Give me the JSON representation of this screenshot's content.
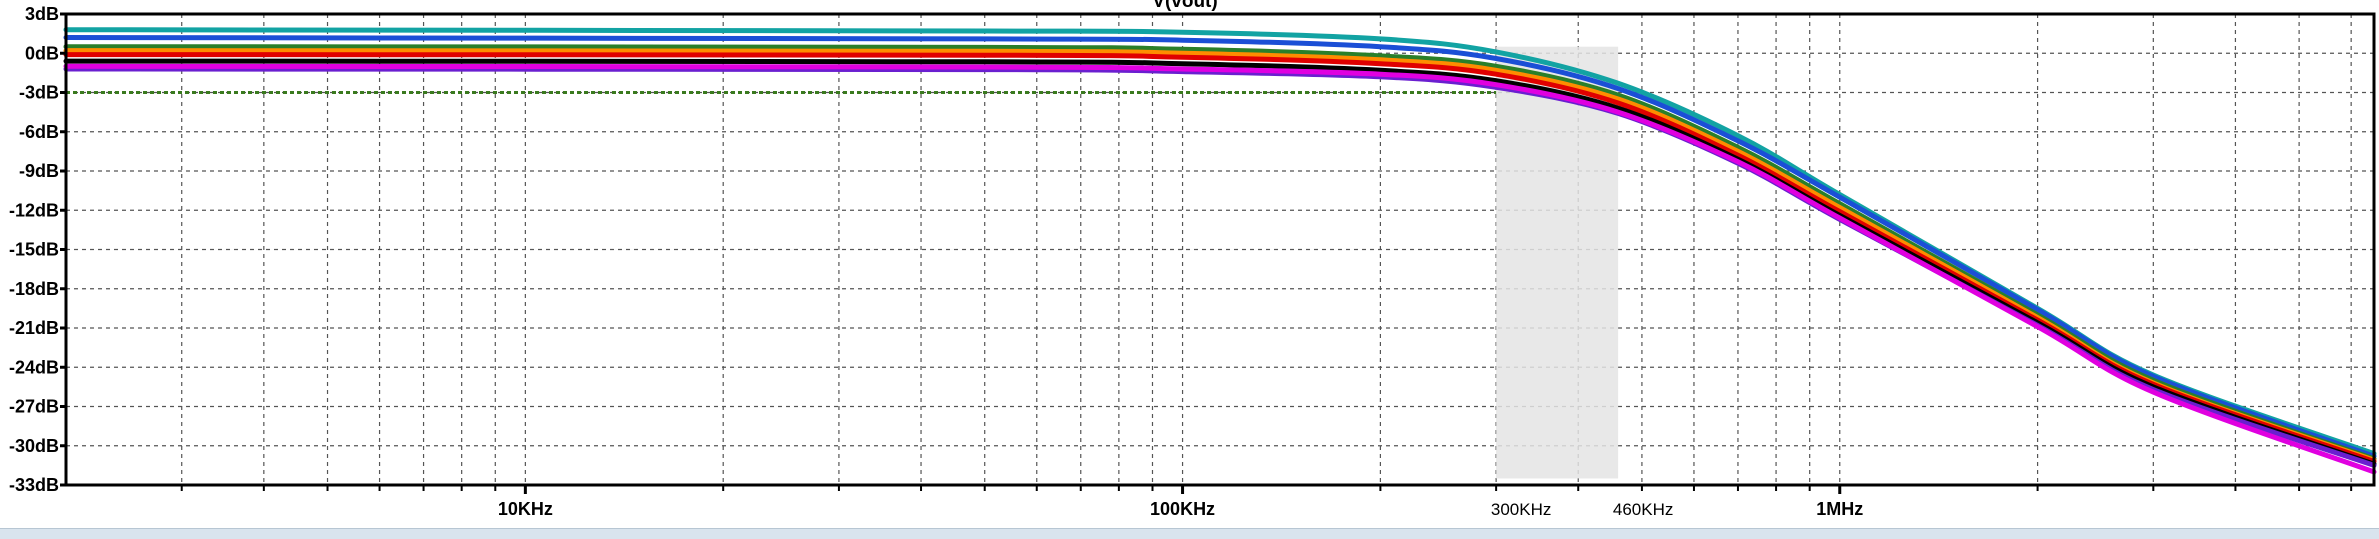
{
  "window": {
    "title": "V(vout)"
  },
  "chart_data": {
    "type": "line",
    "title": "V(vout)",
    "xlabel": "",
    "ylabel": "",
    "xscale": "log",
    "xlim": [
      2000,
      6500000
    ],
    "ylim": [
      -33,
      3
    ],
    "grid": true,
    "y_ticks": [
      {
        "value": 3,
        "label": "3dB"
      },
      {
        "value": 0,
        "label": "0dB"
      },
      {
        "value": -3,
        "label": "-3dB"
      },
      {
        "value": -6,
        "label": "-6dB"
      },
      {
        "value": -9,
        "label": "-9dB"
      },
      {
        "value": -12,
        "label": "-12dB"
      },
      {
        "value": -15,
        "label": "-15dB"
      },
      {
        "value": -18,
        "label": "-18dB"
      },
      {
        "value": -21,
        "label": "-21dB"
      },
      {
        "value": -24,
        "label": "-24dB"
      },
      {
        "value": -27,
        "label": "-27dB"
      },
      {
        "value": -30,
        "label": "-30dB"
      },
      {
        "value": -33,
        "label": "-33dB"
      }
    ],
    "x_ticks": [
      {
        "value": 10000,
        "label": "10KHz"
      },
      {
        "value": 100000,
        "label": "100KHz"
      },
      {
        "value": 1000000,
        "label": "1MHz"
      }
    ],
    "annotations": {
      "reference_line": {
        "y": -3,
        "style": "dotted",
        "color": "#3a7a1e"
      },
      "band": {
        "x_from": 300000,
        "x_to": 460000,
        "color": "#e4e4e4",
        "labels": [
          {
            "value": 300000,
            "label": "300KHz"
          },
          {
            "value": 460000,
            "label": "460KHz"
          }
        ]
      }
    },
    "series": [
      {
        "color": "#12a3a3",
        "values": [
          [
            2000,
            1.8
          ],
          [
            50000,
            1.7
          ],
          [
            100000,
            1.6
          ],
          [
            200000,
            1.1
          ],
          [
            300000,
            0.1
          ],
          [
            460000,
            -2.3
          ],
          [
            700000,
            -6.3
          ],
          [
            1000000,
            -10.8
          ],
          [
            2000000,
            -19.5
          ],
          [
            3000000,
            -24.6
          ],
          [
            6500000,
            -30.6
          ]
        ]
      },
      {
        "color": "#1b4fd6",
        "values": [
          [
            2000,
            1.2
          ],
          [
            50000,
            1.1
          ],
          [
            100000,
            1.0
          ],
          [
            200000,
            0.5
          ],
          [
            300000,
            -0.4
          ],
          [
            460000,
            -2.7
          ],
          [
            700000,
            -6.7
          ],
          [
            1000000,
            -11.0
          ],
          [
            2000000,
            -19.6
          ],
          [
            3000000,
            -24.7
          ],
          [
            6500000,
            -30.8
          ]
        ]
      },
      {
        "color": "#2a7f2a",
        "values": [
          [
            2000,
            0.5
          ],
          [
            50000,
            0.45
          ],
          [
            100000,
            0.3
          ],
          [
            200000,
            -0.2
          ],
          [
            300000,
            -1.0
          ],
          [
            460000,
            -3.2
          ],
          [
            700000,
            -7.2
          ],
          [
            1000000,
            -11.5
          ],
          [
            2000000,
            -20.0
          ],
          [
            3000000,
            -25.0
          ],
          [
            6500000,
            -31.0
          ]
        ]
      },
      {
        "color": "#ff8c00",
        "values": [
          [
            2000,
            0.2
          ],
          [
            50000,
            0.15
          ],
          [
            100000,
            0.0
          ],
          [
            200000,
            -0.5
          ],
          [
            300000,
            -1.3
          ],
          [
            460000,
            -3.5
          ],
          [
            700000,
            -7.5
          ],
          [
            1000000,
            -11.8
          ],
          [
            2000000,
            -20.2
          ],
          [
            3000000,
            -25.2
          ],
          [
            6500000,
            -31.1
          ]
        ]
      },
      {
        "color": "#e00000",
        "values": [
          [
            2000,
            -0.1
          ],
          [
            50000,
            -0.15
          ],
          [
            100000,
            -0.3
          ],
          [
            200000,
            -0.8
          ],
          [
            300000,
            -1.6
          ],
          [
            460000,
            -3.8
          ],
          [
            700000,
            -7.8
          ],
          [
            1000000,
            -12.1
          ],
          [
            2000000,
            -20.4
          ],
          [
            3000000,
            -25.3
          ],
          [
            6500000,
            -31.2
          ]
        ]
      },
      {
        "color": "#000000",
        "values": [
          [
            2000,
            -0.6
          ],
          [
            50000,
            -0.65
          ],
          [
            100000,
            -0.8
          ],
          [
            200000,
            -1.3
          ],
          [
            300000,
            -2.1
          ],
          [
            460000,
            -4.2
          ],
          [
            700000,
            -8.1
          ],
          [
            1000000,
            -12.4
          ],
          [
            2000000,
            -20.6
          ],
          [
            3000000,
            -25.5
          ],
          [
            6500000,
            -31.4
          ]
        ]
      },
      {
        "color": "#6a1fd0",
        "values": [
          [
            2000,
            -1.2
          ],
          [
            50000,
            -1.25
          ],
          [
            100000,
            -1.4
          ],
          [
            200000,
            -1.8
          ],
          [
            300000,
            -2.6
          ],
          [
            460000,
            -4.6
          ],
          [
            700000,
            -8.4
          ],
          [
            1000000,
            -12.7
          ],
          [
            2000000,
            -20.8
          ],
          [
            3000000,
            -25.7
          ],
          [
            6500000,
            -31.5
          ]
        ]
      },
      {
        "color": "#e000e0",
        "values": [
          [
            2000,
            -1.0
          ],
          [
            50000,
            -1.05
          ],
          [
            100000,
            -1.2
          ],
          [
            200000,
            -1.6
          ],
          [
            300000,
            -2.4
          ],
          [
            460000,
            -4.5
          ],
          [
            700000,
            -8.3
          ],
          [
            1000000,
            -12.6
          ],
          [
            2000000,
            -20.9
          ],
          [
            3000000,
            -25.9
          ],
          [
            6500000,
            -32.0
          ]
        ]
      }
    ]
  }
}
